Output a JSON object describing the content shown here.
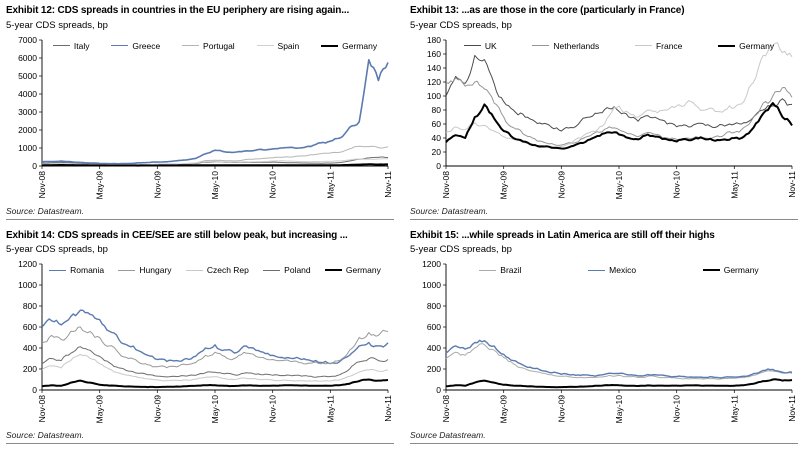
{
  "page": {
    "background": "#ffffff"
  },
  "chart_data": [
    {
      "type": "line",
      "title": "Exhibit 12: CDS spreads in countries in the EU periphery are rising again...",
      "subtitle": "5-year CDS spreads, bp",
      "source": "Source: Datastream.",
      "x_tick_labels": [
        "Nov-08",
        "May-09",
        "Nov-09",
        "May-10",
        "Nov-10",
        "May-11",
        "Nov-11"
      ],
      "x_tick_positions": [
        0,
        6,
        12,
        18,
        24,
        30,
        36
      ],
      "x_max": 36,
      "ylim": [
        0,
        7000
      ],
      "y_ticks": [
        0,
        1000,
        2000,
        3000,
        4000,
        5000,
        6000,
        7000
      ],
      "grid": false,
      "legend_position": "top",
      "noise": 0.05,
      "series": [
        {
          "name": "Italy",
          "color": "#6e6e6e",
          "width": 1,
          "values": [
            160,
            180,
            190,
            175,
            150,
            125,
            110,
            100,
            90,
            85,
            80,
            85,
            90,
            100,
            110,
            120,
            140,
            220,
            235,
            205,
            195,
            205,
            195,
            205,
            215,
            195,
            185,
            165,
            160,
            155,
            160,
            190,
            280,
            380,
            450,
            480,
            470
          ]
        },
        {
          "name": "Greece",
          "color": "#5b7bb0",
          "width": 1.6,
          "values": [
            230,
            250,
            270,
            240,
            200,
            165,
            145,
            130,
            125,
            140,
            175,
            195,
            215,
            235,
            290,
            340,
            420,
            680,
            880,
            790,
            760,
            820,
            850,
            900,
            950,
            1000,
            1040,
            1010,
            1090,
            1290,
            1380,
            1550,
            2150,
            2450,
            5900,
            4750,
            5750
          ]
        },
        {
          "name": "Portugal",
          "color": "#b5b5b5",
          "width": 1,
          "values": [
            90,
            100,
            110,
            100,
            85,
            70,
            65,
            60,
            58,
            60,
            62,
            68,
            72,
            85,
            95,
            130,
            160,
            300,
            320,
            290,
            280,
            340,
            380,
            420,
            450,
            480,
            500,
            560,
            620,
            680,
            720,
            760,
            950,
            1100,
            1080,
            1020,
            1060
          ]
        },
        {
          "name": "Spain",
          "color": "#d0d0d0",
          "width": 1,
          "values": [
            100,
            115,
            120,
            110,
            95,
            80,
            75,
            70,
            68,
            70,
            72,
            78,
            82,
            95,
            105,
            140,
            170,
            250,
            255,
            225,
            215,
            235,
            230,
            250,
            280,
            300,
            270,
            250,
            240,
            245,
            255,
            280,
            340,
            390,
            380,
            390,
            400
          ]
        },
        {
          "name": "Germany",
          "color": "#000000",
          "width": 2,
          "values": [
            35,
            45,
            55,
            50,
            42,
            35,
            32,
            30,
            28,
            26,
            25,
            27,
            30,
            33,
            36,
            38,
            42,
            46,
            44,
            40,
            38,
            44,
            42,
            40,
            44,
            46,
            45,
            42,
            40,
            40,
            41,
            45,
            60,
            80,
            95,
            85,
            90
          ]
        }
      ]
    },
    {
      "type": "line",
      "title": "Exhibit 13: ...as are those in the core (particularly in France)",
      "subtitle": "5-year CDS spreads, bp",
      "source": "Source: Datastream.",
      "x_tick_labels": [
        "Nov-08",
        "May-09",
        "Nov-09",
        "May-10",
        "Nov-10",
        "May-11",
        "Nov-11"
      ],
      "x_tick_positions": [
        0,
        6,
        12,
        18,
        24,
        30,
        36
      ],
      "x_max": 36,
      "ylim": [
        0,
        180
      ],
      "y_ticks": [
        0,
        20,
        40,
        60,
        80,
        100,
        120,
        140,
        160,
        180
      ],
      "grid": false,
      "legend_position": "top",
      "noise": 0.06,
      "series": [
        {
          "name": "UK",
          "color": "#4d4d4d",
          "width": 1,
          "values": [
            100,
            128,
            118,
            158,
            152,
            118,
            92,
            80,
            74,
            66,
            60,
            55,
            50,
            55,
            64,
            70,
            76,
            82,
            78,
            70,
            64,
            72,
            68,
            60,
            56,
            58,
            60,
            58,
            55,
            57,
            60,
            62,
            70,
            80,
            86,
            96,
            88
          ]
        },
        {
          "name": "Netherlands",
          "color": "#969696",
          "width": 1,
          "values": [
            120,
            126,
            114,
            120,
            110,
            90,
            70,
            55,
            46,
            40,
            35,
            32,
            30,
            33,
            38,
            43,
            48,
            56,
            52,
            46,
            42,
            48,
            45,
            40,
            38,
            40,
            42,
            40,
            42,
            45,
            48,
            55,
            70,
            90,
            100,
            112,
            98
          ]
        },
        {
          "name": "France",
          "color": "#c9c9c9",
          "width": 1,
          "values": [
            48,
            56,
            52,
            62,
            58,
            50,
            42,
            38,
            34,
            31,
            29,
            28,
            28,
            32,
            40,
            48,
            56,
            72,
            86,
            76,
            70,
            80,
            76,
            80,
            86,
            90,
            86,
            80,
            78,
            80,
            83,
            92,
            120,
            158,
            172,
            162,
            156
          ]
        },
        {
          "name": "Germany",
          "color": "#000000",
          "width": 2,
          "values": [
            34,
            44,
            40,
            70,
            88,
            68,
            50,
            40,
            35,
            30,
            28,
            26,
            25,
            28,
            33,
            38,
            43,
            48,
            45,
            40,
            38,
            45,
            42,
            38,
            35,
            38,
            40,
            38,
            36,
            38,
            40,
            42,
            55,
            75,
            90,
            70,
            58
          ]
        }
      ]
    },
    {
      "type": "line",
      "title": "Exhibit 14: CDS spreads in CEE/SEE are still below peak, but increasing ...",
      "subtitle": "5-year CDS spreads, bp",
      "source": "Source: Datastream.",
      "x_tick_labels": [
        "Nov-08",
        "May-09",
        "Nov-09",
        "May-10",
        "Nov-10",
        "May-11",
        "Nov-11"
      ],
      "x_tick_positions": [
        0,
        6,
        12,
        18,
        24,
        30,
        36
      ],
      "x_max": 36,
      "ylim": [
        0,
        1200
      ],
      "y_ticks": [
        0,
        200,
        400,
        600,
        800,
        1000,
        1200
      ],
      "grid": false,
      "legend_position": "top",
      "noise": 0.06,
      "series": [
        {
          "name": "Romania",
          "color": "#5b7bb0",
          "width": 1.4,
          "values": [
            600,
            660,
            620,
            700,
            760,
            720,
            670,
            560,
            480,
            420,
            375,
            330,
            290,
            272,
            280,
            300,
            322,
            400,
            430,
            382,
            352,
            418,
            400,
            360,
            330,
            310,
            300,
            290,
            278,
            262,
            252,
            272,
            330,
            420,
            452,
            420,
            450
          ]
        },
        {
          "name": "Hungary",
          "color": "#9a9a9a",
          "width": 1,
          "values": [
            450,
            520,
            480,
            560,
            600,
            558,
            500,
            420,
            350,
            300,
            268,
            240,
            222,
            212,
            220,
            240,
            262,
            330,
            360,
            320,
            300,
            358,
            340,
            310,
            290,
            280,
            270,
            260,
            255,
            250,
            250,
            282,
            380,
            500,
            548,
            520,
            558
          ]
        },
        {
          "name": "Czech Rep",
          "color": "#c9c9c9",
          "width": 1,
          "values": [
            190,
            230,
            210,
            280,
            338,
            300,
            250,
            200,
            162,
            140,
            120,
            106,
            96,
            90,
            92,
            96,
            102,
            120,
            126,
            110,
            100,
            114,
            110,
            100,
            95,
            92,
            90,
            88,
            86,
            85,
            86,
            96,
            130,
            172,
            190,
            180,
            190
          ]
        },
        {
          "name": "Poland",
          "color": "#6e6e6e",
          "width": 1,
          "values": [
            250,
            300,
            280,
            350,
            412,
            378,
            320,
            260,
            210,
            180,
            160,
            145,
            132,
            125,
            128,
            132,
            140,
            164,
            170,
            155,
            145,
            160,
            155,
            145,
            140,
            138,
            135,
            132,
            130,
            128,
            129,
            146,
            200,
            268,
            298,
            280,
            290
          ]
        },
        {
          "name": "Germany",
          "color": "#000000",
          "width": 2,
          "values": [
            35,
            45,
            40,
            70,
            90,
            70,
            50,
            42,
            38,
            34,
            30,
            28,
            28,
            30,
            33,
            36,
            40,
            46,
            45,
            40,
            38,
            44,
            42,
            40,
            42,
            44,
            45,
            42,
            40,
            40,
            41,
            46,
            60,
            85,
            100,
            90,
            95
          ]
        }
      ]
    },
    {
      "type": "line",
      "title": "Exhibit 15: ...while spreads in Latin America are still off their highs",
      "subtitle": "5-year CDS spreads, bp",
      "source": "Source Datastream.",
      "x_tick_labels": [
        "Nov-08",
        "May-09",
        "Nov-09",
        "May-10",
        "Nov-10",
        "May-11",
        "Nov-11"
      ],
      "x_tick_positions": [
        0,
        6,
        12,
        18,
        24,
        30,
        36
      ],
      "x_max": 36,
      "ylim": [
        0,
        1200
      ],
      "y_ticks": [
        0,
        200,
        400,
        600,
        800,
        1000,
        1200
      ],
      "grid": false,
      "legend_position": "top",
      "noise": 0.06,
      "series": [
        {
          "name": "Brazil",
          "color": "#ababab",
          "width": 1,
          "values": [
            300,
            360,
            330,
            400,
            432,
            380,
            310,
            250,
            210,
            180,
            160,
            145,
            130,
            124,
            121,
            119,
            124,
            140,
            139,
            128,
            119,
            130,
            124,
            118,
            112,
            110,
            110,
            108,
            108,
            110,
            111,
            118,
            140,
            170,
            180,
            160,
            160
          ]
        },
        {
          "name": "Mexico",
          "color": "#5b7bb0",
          "width": 1.4,
          "values": [
            350,
            420,
            390,
            452,
            470,
            420,
            340,
            280,
            238,
            208,
            184,
            164,
            150,
            144,
            140,
            137,
            142,
            160,
            157,
            144,
            134,
            147,
            142,
            134,
            128,
            125,
            123,
            120,
            120,
            122,
            123,
            131,
            156,
            186,
            196,
            170,
            170
          ]
        },
        {
          "name": "Germany",
          "color": "#000000",
          "width": 2,
          "values": [
            35,
            45,
            40,
            70,
            90,
            70,
            50,
            42,
            38,
            34,
            30,
            28,
            28,
            30,
            33,
            36,
            40,
            46,
            45,
            40,
            38,
            44,
            42,
            40,
            42,
            44,
            45,
            42,
            40,
            40,
            41,
            46,
            60,
            85,
            100,
            90,
            95
          ]
        }
      ]
    }
  ]
}
